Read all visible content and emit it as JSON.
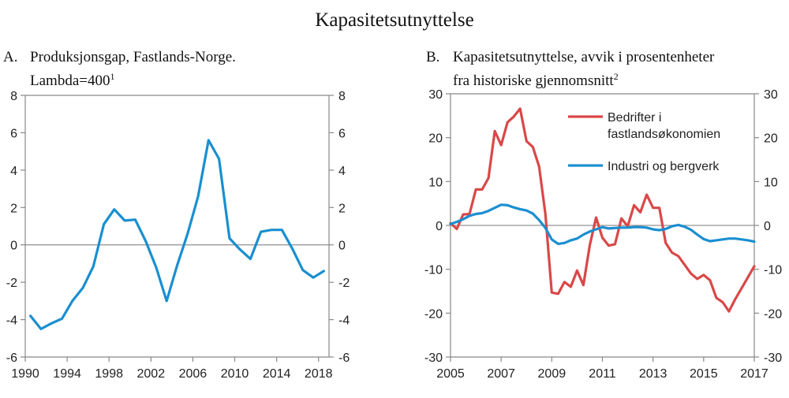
{
  "figure_title": "Kapasitetsutnyttelse",
  "chart_data": [
    {
      "type": "line",
      "panel_label": "A.",
      "title_line1": "Produksjonsgap, Fastlands-Norge.",
      "title_line2": "Lambda=400",
      "title_footnote": "1",
      "xlabel": "",
      "ylabel": "",
      "xlim": [
        1990,
        2019
      ],
      "ylim": [
        -6,
        8
      ],
      "x_ticks": [
        "1990",
        "1994",
        "1998",
        "2002",
        "2006",
        "2010",
        "2014",
        "2018"
      ],
      "x_tick_values": [
        1990,
        1994,
        1998,
        2002,
        2006,
        2010,
        2014,
        2018
      ],
      "y_ticks": [
        "8",
        "6",
        "4",
        "2",
        "0",
        "-2",
        "-4",
        "-6"
      ],
      "y_tick_values": [
        8,
        6,
        4,
        2,
        0,
        -2,
        -4,
        -6
      ],
      "grid": false,
      "zero_line": true,
      "series": [
        {
          "name": "Produksjonsgap",
          "color": "#1a8fd0",
          "x": [
            1990.5,
            1991.5,
            1992.5,
            1993.5,
            1994.5,
            1995.5,
            1996.5,
            1997.5,
            1998.5,
            1999.5,
            2000.5,
            2001.5,
            2002.5,
            2003.5,
            2004.5,
            2005.5,
            2006.5,
            2007.5,
            2008.5,
            2009.5,
            2010.5,
            2011.5,
            2012.5,
            2013.5,
            2014.5,
            2015.5,
            2016.5,
            2017.5,
            2018.5
          ],
          "values": [
            -3.8,
            -4.5,
            -4.2,
            -3.95,
            -3.0,
            -2.3,
            -1.15,
            1.1,
            1.9,
            1.3,
            1.35,
            0.2,
            -1.2,
            -3.0,
            -1.1,
            0.6,
            2.6,
            5.6,
            4.6,
            0.35,
            -0.25,
            -0.75,
            0.7,
            0.8,
            0.8,
            -0.2,
            -1.35,
            -1.75,
            -1.4
          ]
        }
      ]
    },
    {
      "type": "line",
      "panel_label": "B.",
      "title_line1": "Kapasitetsutnyttelse, avvik i prosentenheter",
      "title_line2": "fra historiske gjennomsnitt",
      "title_footnote": "2",
      "xlabel": "",
      "ylabel": "",
      "xlim": [
        2005,
        2017
      ],
      "ylim": [
        -30,
        30
      ],
      "x_ticks": [
        "2005",
        "2007",
        "2009",
        "2011",
        "2013",
        "2015",
        "2017"
      ],
      "x_tick_values": [
        2005,
        2007,
        2009,
        2011,
        2013,
        2015,
        2017
      ],
      "y_ticks": [
        "30",
        "20",
        "10",
        "0",
        "-10",
        "-20",
        "-30"
      ],
      "y_tick_values": [
        30,
        20,
        10,
        0,
        -10,
        -20,
        -30
      ],
      "grid": false,
      "zero_line": true,
      "legend_position": "top-right",
      "series": [
        {
          "name": "Bedrifter i fastlandsøkonomien",
          "legend_line1": "Bedrifter i",
          "legend_line2": "fastlandsøkonomien",
          "color": "#d94848",
          "x": [
            2005.0,
            2005.25,
            2005.5,
            2005.75,
            2006.0,
            2006.25,
            2006.5,
            2006.75,
            2007.0,
            2007.25,
            2007.5,
            2007.75,
            2008.0,
            2008.25,
            2008.5,
            2008.75,
            2009.0,
            2009.25,
            2009.5,
            2009.75,
            2010.0,
            2010.25,
            2010.5,
            2010.75,
            2011.0,
            2011.25,
            2011.5,
            2011.75,
            2012.0,
            2012.25,
            2012.5,
            2012.75,
            2013.0,
            2013.25,
            2013.5,
            2013.75,
            2014.0,
            2014.25,
            2014.5,
            2014.75,
            2015.0,
            2015.25,
            2015.5,
            2015.75,
            2016.0,
            2016.25,
            2016.5,
            2016.75,
            2017.0
          ],
          "values": [
            0.5,
            -0.8,
            2.5,
            2.6,
            8.2,
            8.2,
            10.8,
            21.5,
            18.3,
            23.5,
            24.8,
            26.6,
            19.2,
            17.9,
            13.4,
            2.5,
            -15.3,
            -15.6,
            -12.9,
            -14.0,
            -10.3,
            -13.6,
            -4.5,
            1.8,
            -2.8,
            -4.6,
            -4.3,
            1.6,
            -0.2,
            4.6,
            3.0,
            7.0,
            4.0,
            4.0,
            -4.0,
            -6.2,
            -7.0,
            -9.0,
            -11.0,
            -12.2,
            -11.3,
            -12.5,
            -16.5,
            -17.5,
            -19.6,
            -16.8,
            -14.3,
            -11.8,
            -9.3
          ]
        },
        {
          "name": "Industri og bergverk",
          "legend_line1": "Industri og bergverk",
          "color": "#1a8fd0",
          "x": [
            2005.0,
            2005.25,
            2005.5,
            2005.75,
            2006.0,
            2006.25,
            2006.5,
            2006.75,
            2007.0,
            2007.25,
            2007.5,
            2007.75,
            2008.0,
            2008.25,
            2008.5,
            2008.75,
            2009.0,
            2009.25,
            2009.5,
            2009.75,
            2010.0,
            2010.25,
            2010.5,
            2010.75,
            2011.0,
            2011.25,
            2011.5,
            2011.75,
            2012.0,
            2012.25,
            2012.5,
            2012.75,
            2013.0,
            2013.25,
            2013.5,
            2013.75,
            2014.0,
            2014.25,
            2014.5,
            2014.75,
            2015.0,
            2015.25,
            2015.5,
            2015.75,
            2016.0,
            2016.25,
            2016.5,
            2016.75,
            2017.0
          ],
          "values": [
            0.3,
            0.8,
            1.4,
            2.2,
            2.6,
            2.8,
            3.3,
            4.0,
            4.7,
            4.6,
            4.1,
            3.7,
            3.4,
            2.7,
            1.2,
            -0.6,
            -3.2,
            -4.2,
            -4.0,
            -3.4,
            -3.0,
            -2.1,
            -1.4,
            -0.9,
            -0.4,
            -0.7,
            -0.6,
            -0.5,
            -0.5,
            -0.4,
            -0.4,
            -0.5,
            -0.9,
            -1.1,
            -0.8,
            -0.2,
            0.1,
            -0.3,
            -1.0,
            -2.1,
            -3.1,
            -3.6,
            -3.4,
            -3.2,
            -3.0,
            -3.0,
            -3.2,
            -3.4,
            -3.7
          ]
        }
      ]
    }
  ]
}
